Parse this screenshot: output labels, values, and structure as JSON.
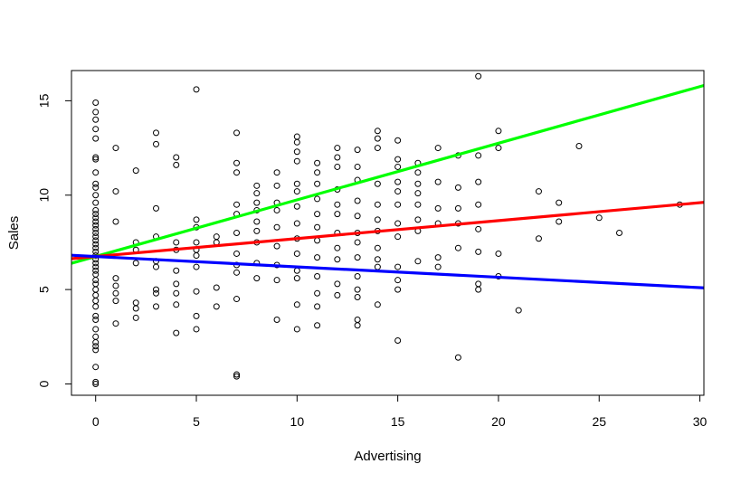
{
  "chart_data": {
    "type": "scatter",
    "title": "",
    "xlabel": "Advertising",
    "ylabel": "Sales",
    "xlim": [
      -1.2,
      30.2
    ],
    "ylim": [
      -0.6,
      16.6
    ],
    "x_ticks": [
      0,
      5,
      10,
      15,
      20,
      25,
      30
    ],
    "x_tick_labels": [
      "0",
      "5",
      "10",
      "15",
      "20",
      "25",
      "30"
    ],
    "y_ticks": [
      0,
      5,
      10,
      15
    ],
    "y_tick_labels": [
      "0",
      "5",
      "10",
      "15"
    ],
    "grid": false,
    "legend": "none",
    "point_style": "open-circle",
    "points": [
      [
        0,
        0.0
      ],
      [
        0,
        0.1
      ],
      [
        0,
        0.9
      ],
      [
        0,
        1.8
      ],
      [
        0,
        2.0
      ],
      [
        0,
        2.2
      ],
      [
        0,
        2.5
      ],
      [
        0,
        2.9
      ],
      [
        0,
        3.4
      ],
      [
        0,
        3.6
      ],
      [
        0,
        4.1
      ],
      [
        0,
        4.4
      ],
      [
        0,
        4.7
      ],
      [
        0,
        5.0
      ],
      [
        0,
        5.3
      ],
      [
        0,
        5.5
      ],
      [
        0,
        5.8
      ],
      [
        0,
        6.0
      ],
      [
        0,
        6.2
      ],
      [
        0,
        6.4
      ],
      [
        0,
        6.6
      ],
      [
        0,
        6.8
      ],
      [
        0,
        7.0
      ],
      [
        0,
        7.2
      ],
      [
        0,
        7.4
      ],
      [
        0,
        7.6
      ],
      [
        0,
        7.8
      ],
      [
        0,
        8.0
      ],
      [
        0,
        8.2
      ],
      [
        0,
        8.4
      ],
      [
        0,
        8.6
      ],
      [
        0,
        8.8
      ],
      [
        0,
        9.0
      ],
      [
        0,
        9.2
      ],
      [
        0,
        9.6
      ],
      [
        0,
        10.0
      ],
      [
        0,
        10.4
      ],
      [
        0,
        10.6
      ],
      [
        0,
        11.2
      ],
      [
        0,
        11.9
      ],
      [
        0,
        12.0
      ],
      [
        0,
        13.0
      ],
      [
        0,
        13.5
      ],
      [
        0,
        14.0
      ],
      [
        0,
        14.4
      ],
      [
        0,
        14.9
      ],
      [
        1,
        3.2
      ],
      [
        1,
        4.4
      ],
      [
        1,
        4.8
      ],
      [
        1,
        5.2
      ],
      [
        1,
        5.6
      ],
      [
        1,
        8.6
      ],
      [
        1,
        10.2
      ],
      [
        1,
        12.5
      ],
      [
        2,
        3.5
      ],
      [
        2,
        4.0
      ],
      [
        2,
        4.3
      ],
      [
        2,
        6.4
      ],
      [
        2,
        7.1
      ],
      [
        2,
        7.5
      ],
      [
        2,
        11.3
      ],
      [
        3,
        4.1
      ],
      [
        3,
        4.8
      ],
      [
        3,
        5.0
      ],
      [
        3,
        6.2
      ],
      [
        3,
        6.5
      ],
      [
        3,
        7.8
      ],
      [
        3,
        9.3
      ],
      [
        3,
        12.7
      ],
      [
        3,
        13.3
      ],
      [
        4,
        2.7
      ],
      [
        4,
        4.2
      ],
      [
        4,
        4.8
      ],
      [
        4,
        5.3
      ],
      [
        4,
        6.0
      ],
      [
        4,
        7.1
      ],
      [
        4,
        7.5
      ],
      [
        4,
        11.6
      ],
      [
        4,
        12.0
      ],
      [
        5,
        2.9
      ],
      [
        5,
        3.6
      ],
      [
        5,
        4.9
      ],
      [
        5,
        6.2
      ],
      [
        5,
        6.8
      ],
      [
        5,
        7.1
      ],
      [
        5,
        7.5
      ],
      [
        5,
        8.3
      ],
      [
        5,
        8.7
      ],
      [
        5,
        15.6
      ],
      [
        6,
        4.1
      ],
      [
        6,
        5.1
      ],
      [
        6,
        7.5
      ],
      [
        6,
        7.8
      ],
      [
        7,
        0.4
      ],
      [
        7,
        0.5
      ],
      [
        7,
        4.5
      ],
      [
        7,
        5.9
      ],
      [
        7,
        6.3
      ],
      [
        7,
        6.9
      ],
      [
        7,
        8.0
      ],
      [
        7,
        9.0
      ],
      [
        7,
        9.5
      ],
      [
        7,
        11.7
      ],
      [
        7,
        11.2
      ],
      [
        7,
        13.3
      ],
      [
        8,
        5.6
      ],
      [
        8,
        6.4
      ],
      [
        8,
        7.5
      ],
      [
        8,
        8.1
      ],
      [
        8,
        8.6
      ],
      [
        8,
        9.2
      ],
      [
        8,
        9.6
      ],
      [
        8,
        10.1
      ],
      [
        8,
        10.5
      ],
      [
        9,
        3.4
      ],
      [
        9,
        5.5
      ],
      [
        9,
        6.3
      ],
      [
        9,
        7.3
      ],
      [
        9,
        8.3
      ],
      [
        9,
        9.2
      ],
      [
        9,
        9.6
      ],
      [
        9,
        10.5
      ],
      [
        9,
        11.2
      ],
      [
        10,
        2.9
      ],
      [
        10,
        4.2
      ],
      [
        10,
        5.6
      ],
      [
        10,
        6.0
      ],
      [
        10,
        6.9
      ],
      [
        10,
        7.7
      ],
      [
        10,
        8.5
      ],
      [
        10,
        9.4
      ],
      [
        10,
        10.2
      ],
      [
        10,
        10.6
      ],
      [
        10,
        11.8
      ],
      [
        10,
        12.3
      ],
      [
        10,
        12.8
      ],
      [
        10,
        13.1
      ],
      [
        11,
        3.1
      ],
      [
        11,
        4.1
      ],
      [
        11,
        4.8
      ],
      [
        11,
        5.7
      ],
      [
        11,
        6.7
      ],
      [
        11,
        7.6
      ],
      [
        11,
        8.3
      ],
      [
        11,
        9.0
      ],
      [
        11,
        9.8
      ],
      [
        11,
        10.6
      ],
      [
        11,
        11.7
      ],
      [
        11,
        11.2
      ],
      [
        12,
        4.7
      ],
      [
        12,
        5.3
      ],
      [
        12,
        6.6
      ],
      [
        12,
        7.2
      ],
      [
        12,
        8.0
      ],
      [
        12,
        9.0
      ],
      [
        12,
        9.5
      ],
      [
        12,
        10.3
      ],
      [
        12,
        11.5
      ],
      [
        12,
        12.0
      ],
      [
        12,
        12.5
      ],
      [
        13,
        3.1
      ],
      [
        13,
        3.4
      ],
      [
        13,
        4.6
      ],
      [
        13,
        5.0
      ],
      [
        13,
        5.7
      ],
      [
        13,
        6.7
      ],
      [
        13,
        7.5
      ],
      [
        13,
        8.0
      ],
      [
        13,
        8.9
      ],
      [
        13,
        9.7
      ],
      [
        13,
        10.8
      ],
      [
        13,
        11.5
      ],
      [
        13,
        12.4
      ],
      [
        14,
        4.2
      ],
      [
        14,
        6.2
      ],
      [
        14,
        6.6
      ],
      [
        14,
        7.2
      ],
      [
        14,
        8.1
      ],
      [
        14,
        8.7
      ],
      [
        14,
        9.5
      ],
      [
        14,
        10.6
      ],
      [
        14,
        12.5
      ],
      [
        14,
        13.0
      ],
      [
        14,
        13.4
      ],
      [
        15,
        2.3
      ],
      [
        15,
        5.0
      ],
      [
        15,
        5.5
      ],
      [
        15,
        6.2
      ],
      [
        15,
        7.8
      ],
      [
        15,
        8.5
      ],
      [
        15,
        9.5
      ],
      [
        15,
        10.2
      ],
      [
        15,
        10.7
      ],
      [
        15,
        11.5
      ],
      [
        15,
        11.9
      ],
      [
        15,
        12.9
      ],
      [
        16,
        6.5
      ],
      [
        16,
        8.1
      ],
      [
        16,
        8.7
      ],
      [
        16,
        9.5
      ],
      [
        16,
        10.1
      ],
      [
        16,
        10.6
      ],
      [
        16,
        11.2
      ],
      [
        16,
        11.7
      ],
      [
        17,
        6.2
      ],
      [
        17,
        6.7
      ],
      [
        17,
        8.5
      ],
      [
        17,
        9.3
      ],
      [
        17,
        10.7
      ],
      [
        17,
        12.5
      ],
      [
        18,
        1.4
      ],
      [
        18,
        7.2
      ],
      [
        18,
        8.5
      ],
      [
        18,
        9.3
      ],
      [
        18,
        10.4
      ],
      [
        18,
        12.1
      ],
      [
        19,
        5.0
      ],
      [
        19,
        5.3
      ],
      [
        19,
        7.0
      ],
      [
        19,
        8.2
      ],
      [
        19,
        9.5
      ],
      [
        19,
        10.7
      ],
      [
        19,
        12.1
      ],
      [
        19,
        16.3
      ],
      [
        20,
        5.7
      ],
      [
        20,
        6.9
      ],
      [
        20,
        12.5
      ],
      [
        20,
        13.4
      ],
      [
        21,
        3.9
      ],
      [
        22,
        7.7
      ],
      [
        22,
        10.2
      ],
      [
        23,
        8.6
      ],
      [
        23,
        9.6
      ],
      [
        24,
        12.6
      ],
      [
        25,
        8.8
      ],
      [
        26,
        8.0
      ],
      [
        29,
        9.5
      ]
    ],
    "lines": [
      {
        "color": "#00ff00",
        "intercept": 6.75,
        "slope": 0.3
      },
      {
        "color": "#ff0000",
        "intercept": 6.75,
        "slope": 0.095
      },
      {
        "color": "#0000ff",
        "intercept": 6.75,
        "slope": -0.055
      }
    ]
  }
}
